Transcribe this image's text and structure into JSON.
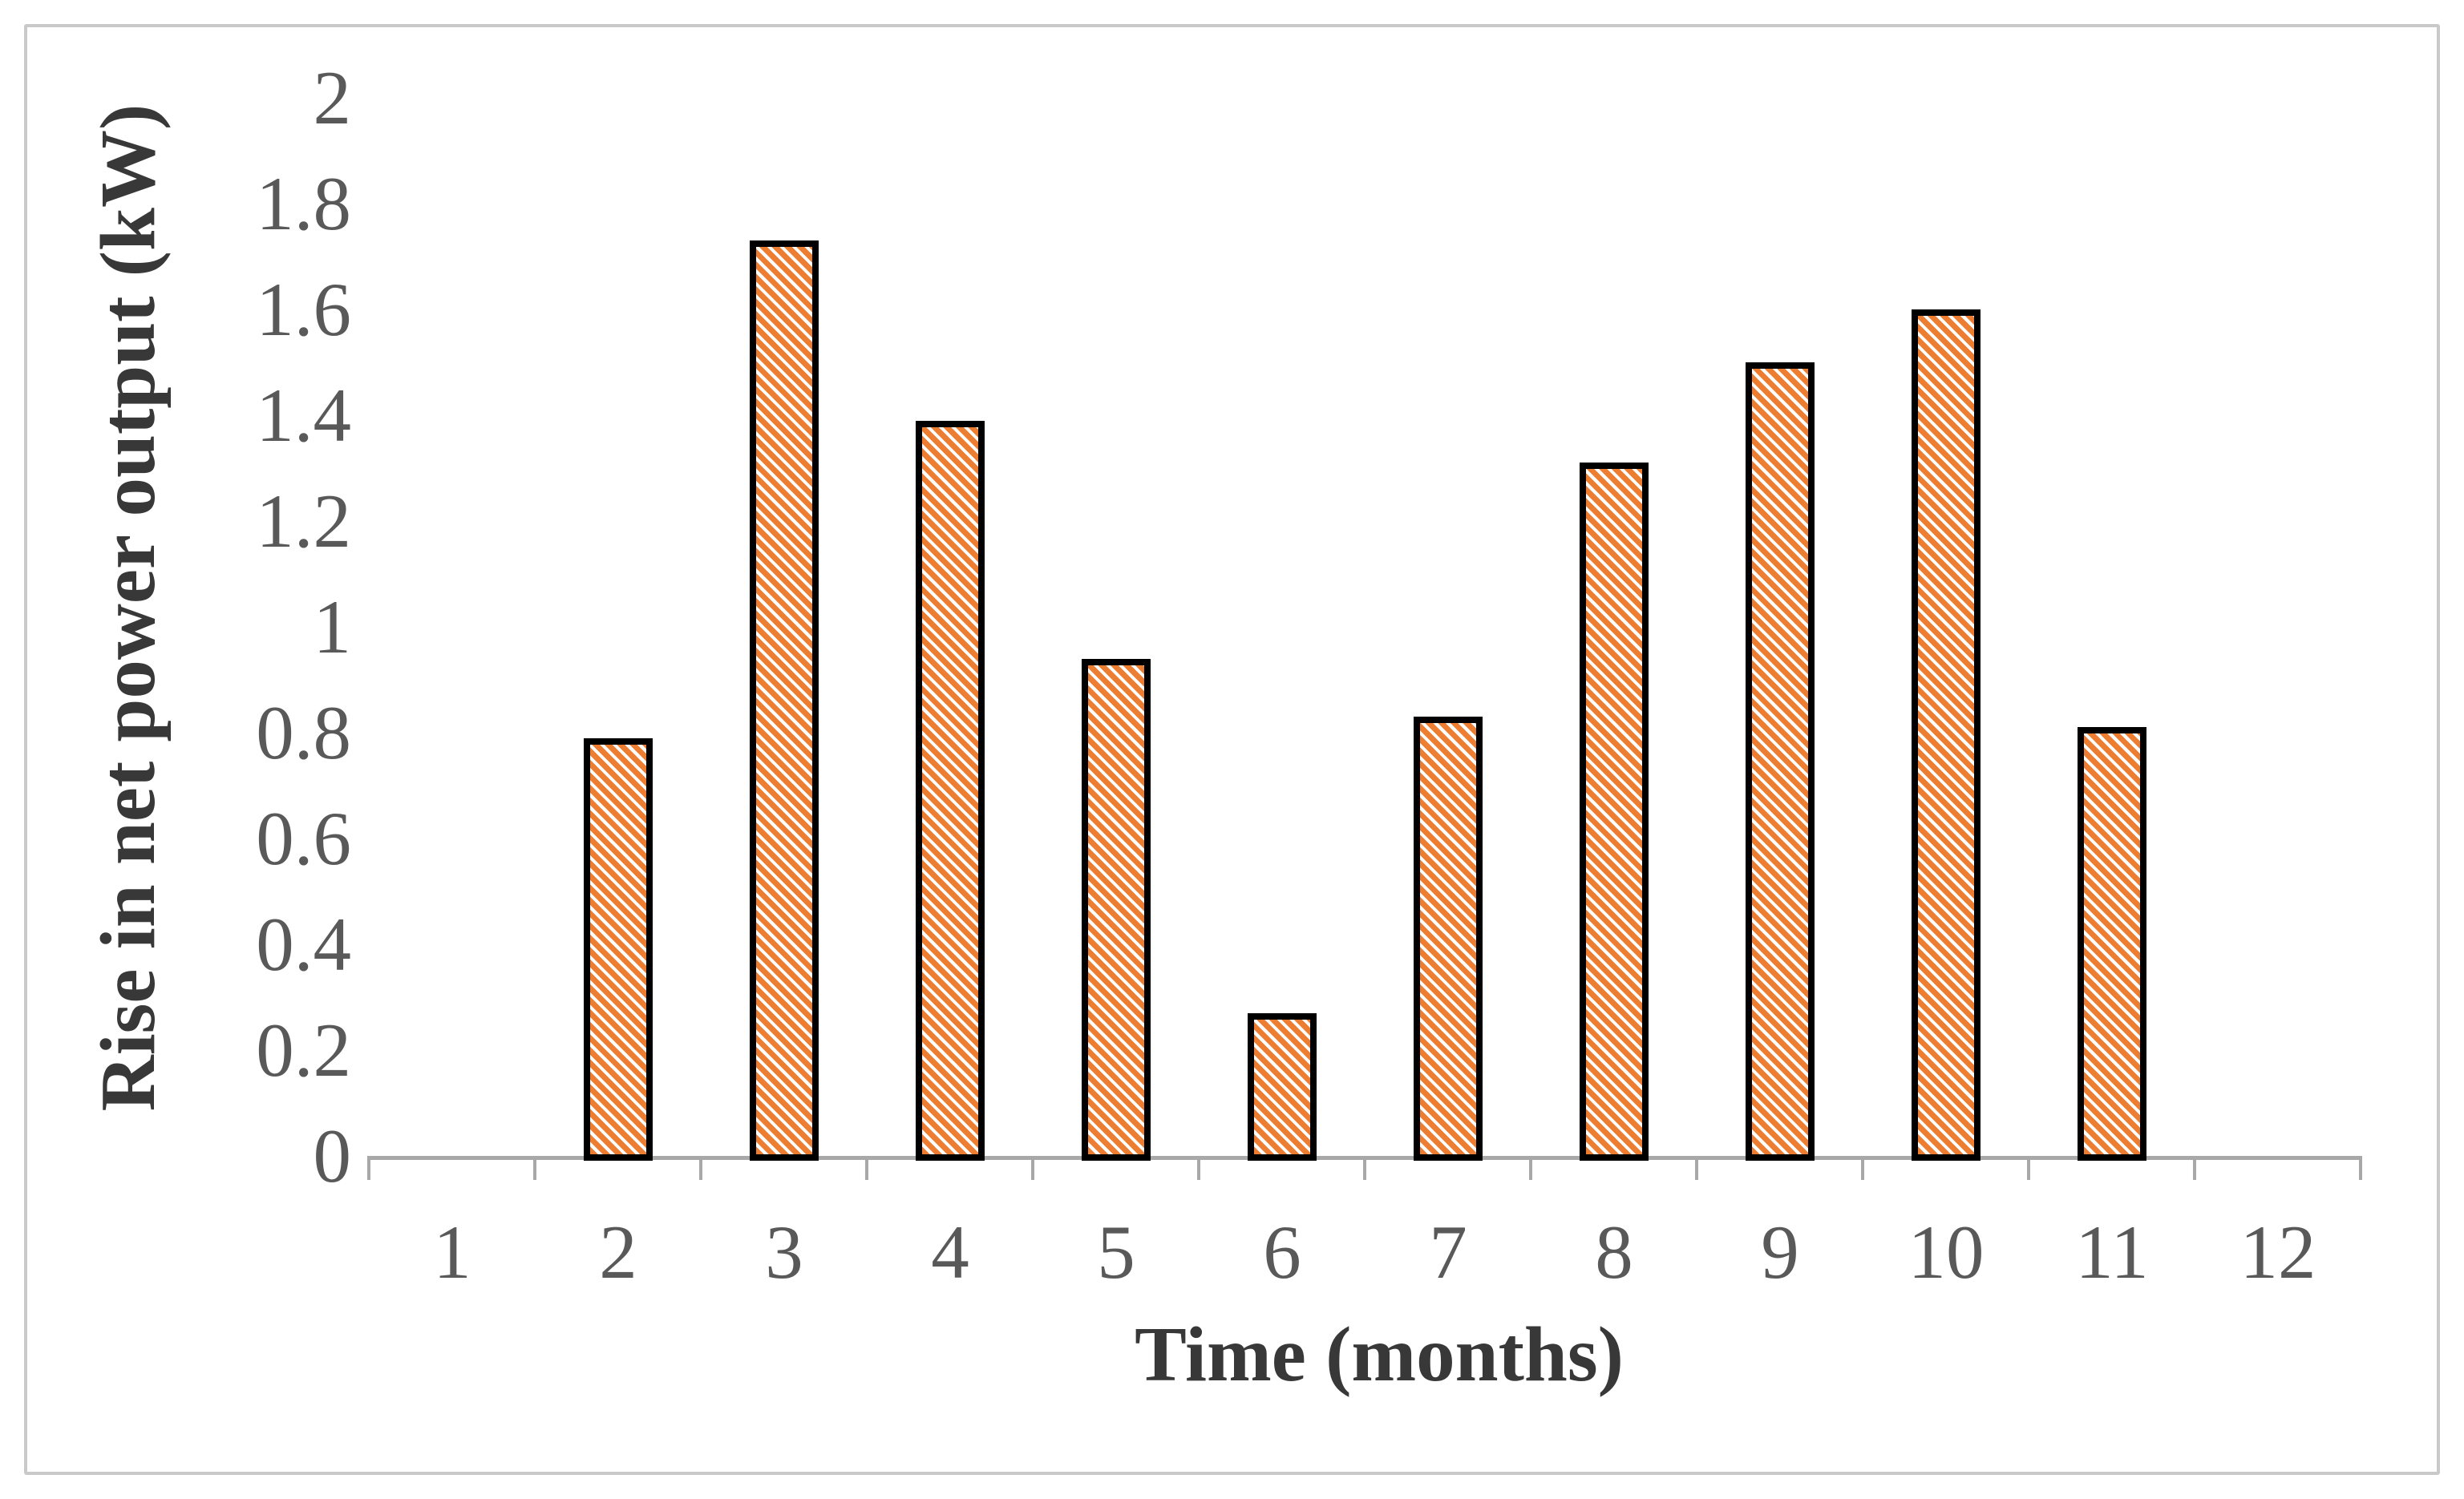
{
  "figure": {
    "kind": "excel-style bar chart",
    "background": "#ffffff",
    "frame_color": "#c9c9c9"
  },
  "chart_data": {
    "type": "bar",
    "title": "",
    "categories": [
      "1",
      "2",
      "3",
      "4",
      "5",
      "6",
      "7",
      "8",
      "9",
      "10",
      "11",
      "12"
    ],
    "values": [
      0,
      0.79,
      1.73,
      1.39,
      0.94,
      0.27,
      0.83,
      1.31,
      1.5,
      1.6,
      0.81,
      0
    ],
    "xlabel": "Time (months)",
    "ylabel": "Rise in net power output (kW)",
    "ylim": [
      0,
      2
    ],
    "ytick_step": 0.2,
    "ytick_labels": [
      "0",
      "0.2",
      "0.4",
      "0.6",
      "0.8",
      "1",
      "1.2",
      "1.4",
      "1.6",
      "1.8",
      "2"
    ],
    "grid": false,
    "legend": "none",
    "bar_fill_color": "#ED7D31",
    "bar_pattern": "diagonal-stripes",
    "bar_border_color": "#000000",
    "axis_color": "#a8a8a8",
    "tick_label_color": "#595959",
    "axis_title_color": "#383838"
  }
}
